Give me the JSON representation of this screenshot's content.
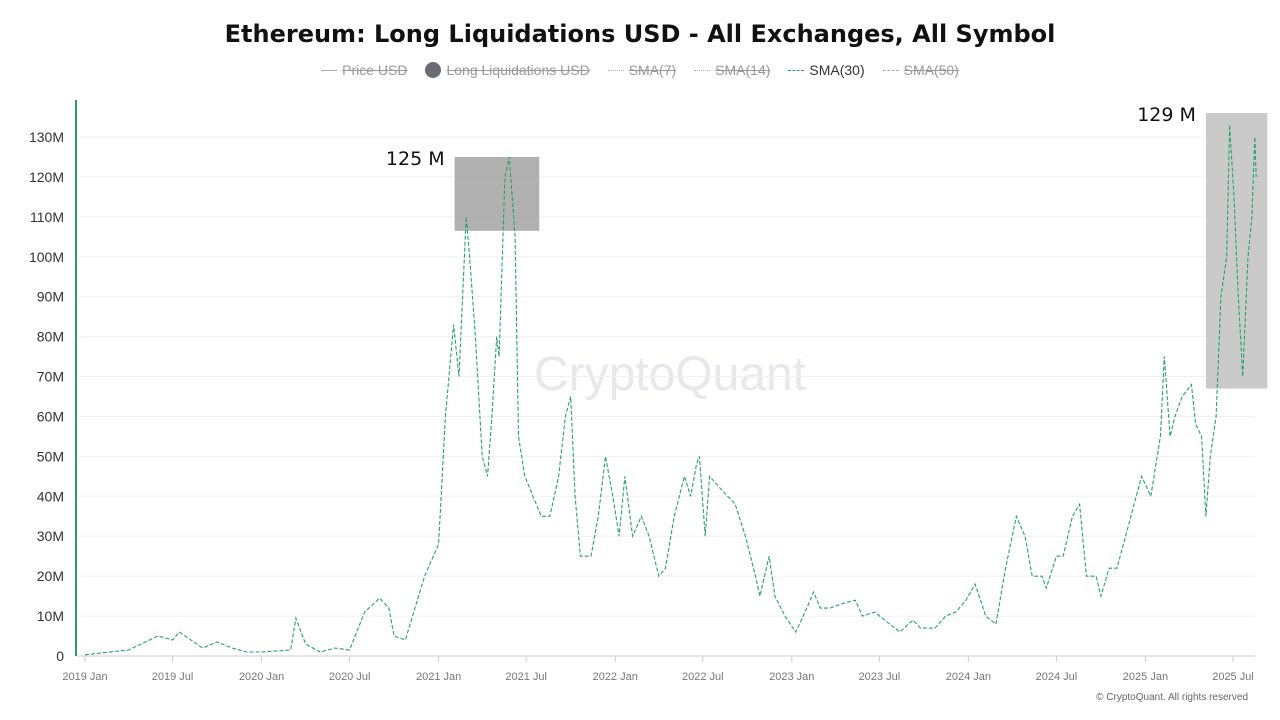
{
  "title": "Ethereum: Long Liquidations USD - All Exchanges, All Symbol",
  "legend": [
    {
      "label": "Price USD",
      "style": "solid",
      "active": false
    },
    {
      "label": "Long Liquidations USD",
      "style": "dot",
      "active": false
    },
    {
      "label": "SMA(7)",
      "style": "dotted",
      "active": false
    },
    {
      "label": "SMA(14)",
      "style": "dotted",
      "active": false
    },
    {
      "label": "SMA(30)",
      "style": "dashed",
      "active": true,
      "color": "#26a269"
    },
    {
      "label": "SMA(50)",
      "style": "dashed",
      "active": false
    }
  ],
  "watermark": "CryptoQuant",
  "footer": "© CryptoQuant. All rights reserved",
  "chart_data": {
    "type": "line",
    "xlabel": "",
    "ylabel": "",
    "xlim": [
      "2019-01-01",
      "2025-08-20"
    ],
    "ylim": [
      0,
      130
    ],
    "yunit": "M",
    "yticks": [
      0,
      10,
      20,
      30,
      40,
      50,
      60,
      70,
      80,
      90,
      100,
      110,
      120,
      130
    ],
    "ytick_labels": [
      "0",
      "10M",
      "20M",
      "30M",
      "40M",
      "50M",
      "60M",
      "70M",
      "80M",
      "90M",
      "100M",
      "110M",
      "120M",
      "130M"
    ],
    "xticks": [
      "2019-01-01",
      "2019-07-01",
      "2020-01-01",
      "2020-07-01",
      "2021-01-01",
      "2021-07-01",
      "2022-01-01",
      "2022-07-01",
      "2023-01-01",
      "2023-07-01",
      "2024-01-01",
      "2024-07-01",
      "2025-01-01",
      "2025-07-01"
    ],
    "xtick_labels": [
      "2019 Jan",
      "2019 Jul",
      "2020 Jan",
      "2020 Jul",
      "2021 Jan",
      "2021 Jul",
      "2022 Jan",
      "2022 Jul",
      "2023 Jan",
      "2023 Jul",
      "2024 Jan",
      "2024 Jul",
      "2025 Jan",
      "2025 Jul"
    ],
    "grid": true,
    "series": [
      {
        "name": "SMA(30)",
        "color": "#26a269",
        "dash": true,
        "x": [
          "2019-01-01",
          "2019-04-01",
          "2019-06-01",
          "2019-07-01",
          "2019-07-15",
          "2019-09-01",
          "2019-10-01",
          "2019-11-01",
          "2019-12-01",
          "2020-01-01",
          "2020-03-01",
          "2020-03-12",
          "2020-04-01",
          "2020-05-01",
          "2020-06-01",
          "2020-07-01",
          "2020-08-01",
          "2020-09-01",
          "2020-09-20",
          "2020-10-01",
          "2020-10-24",
          "2020-11-03",
          "2020-12-03",
          "2021-01-01",
          "2021-01-15",
          "2021-02-01",
          "2021-02-12",
          "2021-02-27",
          "2021-03-06",
          "2021-03-18",
          "2021-04-01",
          "2021-04-12",
          "2021-04-21",
          "2021-05-01",
          "2021-05-06",
          "2021-05-18",
          "2021-05-27",
          "2021-06-08",
          "2021-06-15",
          "2021-06-28",
          "2021-07-15",
          "2021-08-01",
          "2021-08-19",
          "2021-09-06",
          "2021-09-20",
          "2021-10-01",
          "2021-10-10",
          "2021-10-21",
          "2021-11-12",
          "2021-11-27",
          "2021-12-12",
          "2021-12-27",
          "2022-01-09",
          "2022-01-21",
          "2022-02-06",
          "2022-02-24",
          "2022-03-12",
          "2022-04-01",
          "2022-04-15",
          "2022-05-03",
          "2022-05-24",
          "2022-06-06",
          "2022-06-18",
          "2022-06-24",
          "2022-07-06",
          "2022-07-15",
          "2022-08-06",
          "2022-09-06",
          "2022-09-27",
          "2022-10-18",
          "2022-10-27",
          "2022-11-15",
          "2022-11-27",
          "2022-12-18",
          "2023-01-09",
          "2023-02-01",
          "2023-02-15",
          "2023-03-01",
          "2023-03-21",
          "2023-04-12",
          "2023-05-12",
          "2023-05-27",
          "2023-06-21",
          "2023-07-12",
          "2023-08-12",
          "2023-09-09",
          "2023-09-24",
          "2023-10-24",
          "2023-11-15",
          "2023-12-06",
          "2023-12-27",
          "2024-01-15",
          "2024-02-06",
          "2024-02-27",
          "2024-03-18",
          "2024-04-09",
          "2024-04-27",
          "2024-05-12",
          "2024-06-01",
          "2024-06-10",
          "2024-07-01",
          "2024-07-15",
          "2024-08-03",
          "2024-08-18",
          "2024-09-01",
          "2024-09-21",
          "2024-10-01",
          "2024-10-18",
          "2024-11-03",
          "2024-11-21",
          "2024-12-24",
          "2025-01-12",
          "2025-02-01",
          "2025-02-09",
          "2025-02-21",
          "2025-03-03",
          "2025-03-18",
          "2025-04-06",
          "2025-04-15",
          "2025-04-27",
          "2025-05-06",
          "2025-05-15",
          "2025-05-27",
          "2025-06-06",
          "2025-06-18",
          "2025-06-24",
          "2025-07-03",
          "2025-07-12",
          "2025-07-21",
          "2025-08-01",
          "2025-08-09",
          "2025-08-15",
          "2025-08-18"
        ],
        "y": [
          0.3,
          1.5,
          5,
          4,
          6,
          2,
          3.5,
          2,
          1,
          1,
          1.5,
          9.5,
          3,
          1,
          2,
          1.5,
          11,
          14.5,
          12,
          5,
          4,
          8,
          20,
          28,
          60,
          83,
          70,
          110,
          100,
          80,
          50,
          45,
          60,
          80,
          75,
          120,
          125,
          105,
          55,
          45,
          40,
          35,
          35,
          45,
          60,
          65,
          40,
          25,
          25,
          35,
          50,
          40,
          30,
          45,
          30,
          35,
          30,
          20,
          22,
          35,
          45,
          40,
          48,
          50,
          30,
          45,
          42,
          38,
          30,
          20,
          15,
          25,
          15,
          10,
          6,
          12,
          16,
          12,
          12,
          13,
          14,
          10,
          11,
          9,
          6,
          9,
          7,
          7,
          10,
          11,
          14,
          18,
          10,
          8,
          22,
          35,
          30,
          20,
          20,
          17,
          25,
          25,
          35,
          38,
          20,
          20,
          15,
          22,
          22,
          30,
          45,
          40,
          55,
          75,
          55,
          60,
          65,
          68,
          58,
          55,
          35,
          50,
          60,
          90,
          100,
          133,
          115,
          90,
          70,
          100,
          110,
          130,
          120
        ]
      }
    ],
    "annotations": [
      {
        "label": "125 M",
        "x_range": [
          "2021-02-03",
          "2021-07-28"
        ],
        "y_range": [
          106.5,
          125
        ]
      },
      {
        "label": "129 M",
        "x_range": [
          "2025-05-06",
          "2025-09-10"
        ],
        "y_range": [
          67,
          136
        ]
      }
    ]
  }
}
